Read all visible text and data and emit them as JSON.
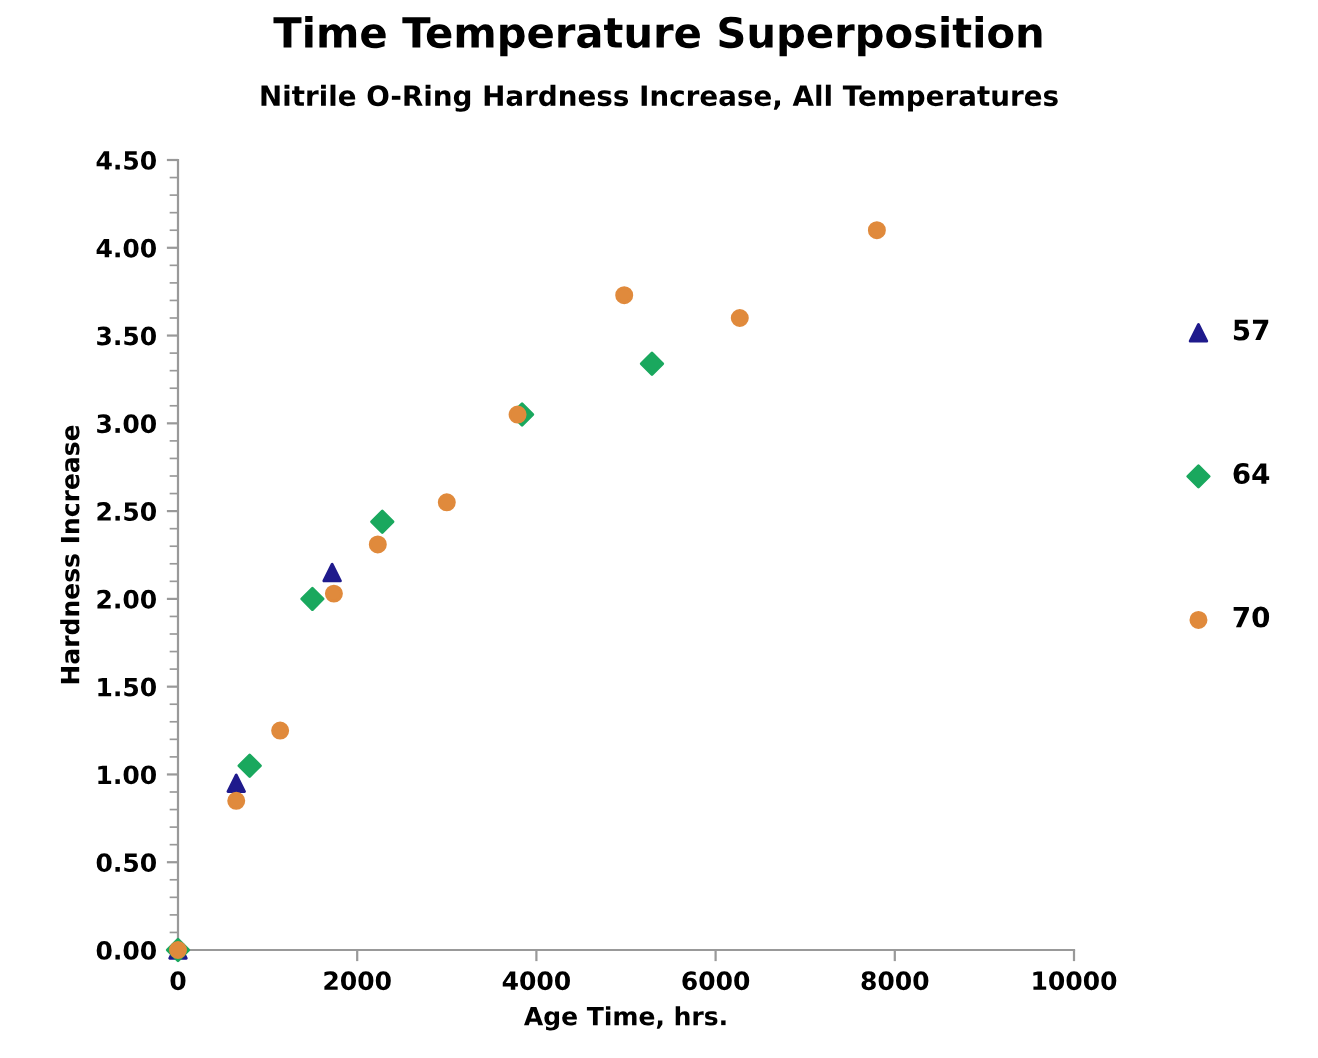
{
  "chart_data": {
    "type": "scatter",
    "title": "Time Temperature Superposition",
    "subtitle": "Nitrile O-Ring Hardness Increase, All Temperatures",
    "xlabel": "Age Time, hrs.",
    "ylabel": "Hardness Increase",
    "xlim": [
      0,
      10000
    ],
    "xticks": [
      0,
      2000,
      4000,
      6000,
      8000,
      10000
    ],
    "ylim": [
      0,
      4.5
    ],
    "yticks": [
      {
        "value": 0,
        "label": "0.00"
      },
      {
        "value": 0.5,
        "label": "0.50"
      },
      {
        "value": 1,
        "label": "1.00"
      },
      {
        "value": 1.5,
        "label": "1.50"
      },
      {
        "value": 2,
        "label": "2.00"
      },
      {
        "value": 2.5,
        "label": "2.50"
      },
      {
        "value": 3,
        "label": "3.00"
      },
      {
        "value": 3.5,
        "label": "3.50"
      },
      {
        "value": 4,
        "label": "4.00"
      },
      {
        "value": 4.5,
        "label": "4.50"
      }
    ],
    "grid": false,
    "legend": "right",
    "series": [
      {
        "name": "57",
        "color": "#1f1a8c",
        "marker": "triangle",
        "x": [
          0,
          650,
          1720
        ],
        "values": [
          0,
          0.95,
          2.15
        ]
      },
      {
        "name": "64",
        "color": "#1aa85e",
        "marker": "diamond",
        "x": [
          0,
          800,
          1500,
          2280,
          3840,
          5290
        ],
        "values": [
          0,
          1.05,
          2.0,
          2.44,
          3.05,
          3.34
        ]
      },
      {
        "name": "70",
        "color": "#e08a3c",
        "marker": "circle",
        "x": [
          0,
          650,
          1140,
          1740,
          2230,
          3000,
          3790,
          4980,
          6270,
          7800
        ],
        "values": [
          0,
          0.85,
          1.25,
          2.03,
          2.31,
          2.55,
          3.05,
          3.73,
          3.6,
          4.1
        ]
      }
    ]
  }
}
